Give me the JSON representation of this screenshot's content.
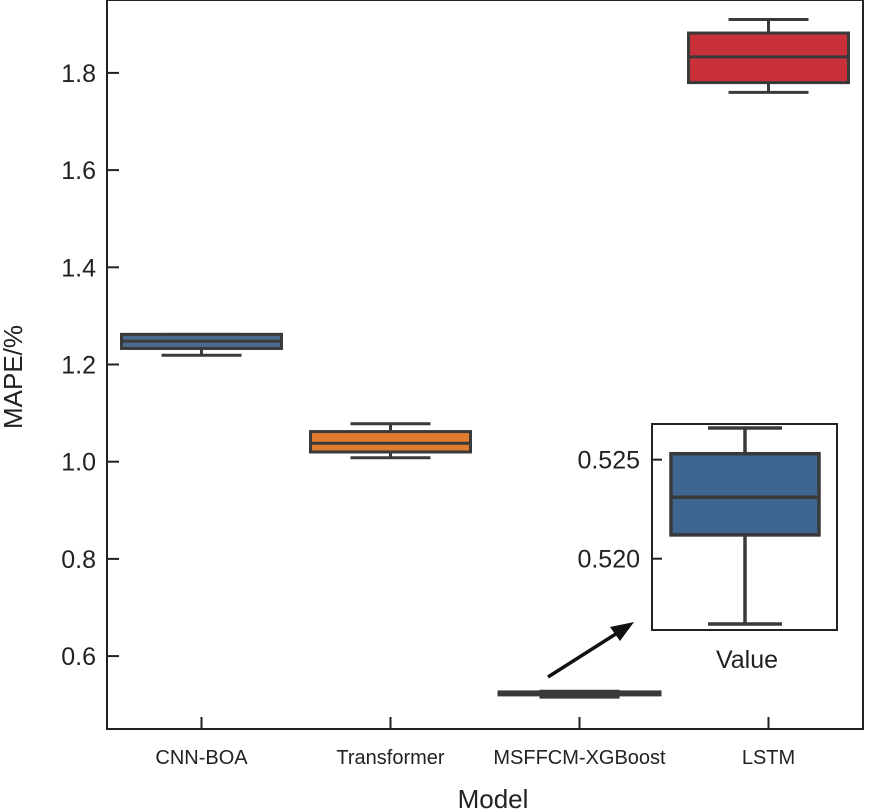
{
  "chart_data": {
    "type": "box",
    "xlabel": "Model",
    "ylabel": "MAPE/%",
    "ylim": [
      0.45,
      1.95
    ],
    "yticks": [
      0.6,
      0.8,
      1.0,
      1.2,
      1.4,
      1.6,
      1.8
    ],
    "ytick_labels": [
      "0.6",
      "0.8",
      "1.0",
      "1.2",
      "1.4",
      "1.6",
      "1.8"
    ],
    "categories": [
      "CNN-BOA",
      "Transformer",
      "MSFFCM-XGBoost",
      "LSTM"
    ],
    "boxes": [
      {
        "name": "CNN-BOA",
        "whislo": 1.219,
        "q1": 1.233,
        "med": 1.248,
        "q3": 1.262,
        "whishi": 1.262,
        "color": "#4a6a8f"
      },
      {
        "name": "Transformer",
        "whislo": 1.008,
        "q1": 1.02,
        "med": 1.038,
        "q3": 1.062,
        "whishi": 1.078,
        "color": "#e17b2e"
      },
      {
        "name": "MSFFCM-XGBoost",
        "whislo": 0.5167,
        "q1": 0.5212,
        "med": 0.5231,
        "q3": 0.5253,
        "whishi": 0.5266,
        "color": "#3f6690"
      },
      {
        "name": "LSTM",
        "whislo": 1.76,
        "q1": 1.78,
        "med": 1.833,
        "q3": 1.882,
        "whishi": 1.91,
        "color": "#c8313a"
      }
    ],
    "inset": {
      "target": "MSFFCM-XGBoost",
      "xlabel": "Value",
      "ylim": [
        0.5164,
        0.5268
      ],
      "yticks": [
        0.52,
        0.525
      ],
      "ytick_labels": [
        "0.520",
        "0.525"
      ],
      "box": {
        "whislo": 0.5167,
        "q1": 0.5212,
        "med": 0.5231,
        "q3": 0.5253,
        "whishi": 0.5266,
        "color": "#3f6690"
      }
    },
    "edge_color": "#3a3a3a"
  }
}
